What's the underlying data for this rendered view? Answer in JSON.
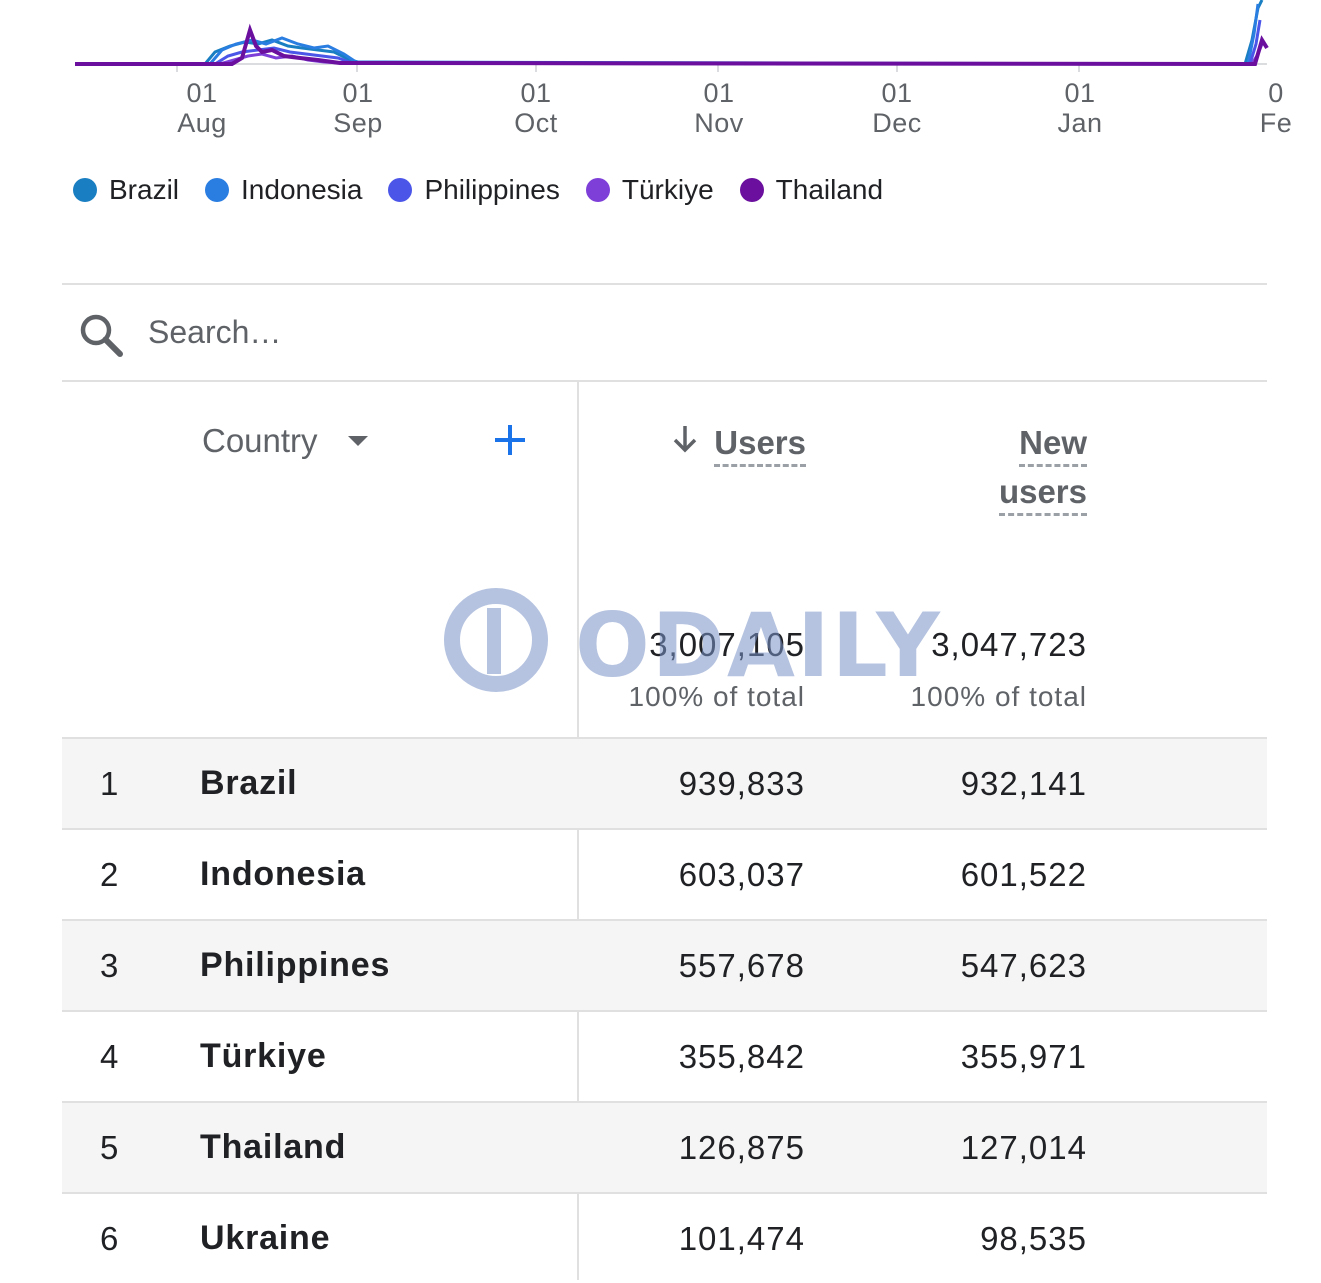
{
  "chart_data": {
    "type": "line",
    "x_ticks": [
      {
        "day": "01",
        "month": "Aug"
      },
      {
        "day": "01",
        "month": "Sep"
      },
      {
        "day": "01",
        "month": "Oct"
      },
      {
        "day": "01",
        "month": "Nov"
      },
      {
        "day": "01",
        "month": "Dec"
      },
      {
        "day": "01",
        "month": "Jan"
      },
      {
        "day": "0",
        "month": "Fe"
      }
    ],
    "series": [
      {
        "name": "Brazil",
        "color": "#1a7fc2"
      },
      {
        "name": "Indonesia",
        "color": "#2a7de1"
      },
      {
        "name": "Philippines",
        "color": "#4b55e8"
      },
      {
        "name": "Türkiye",
        "color": "#7d3fd8"
      },
      {
        "name": "Thailand",
        "color": "#6a0f9e"
      }
    ]
  },
  "search": {
    "placeholder": "Search…"
  },
  "table": {
    "dimension_label": "Country",
    "columns": {
      "users": "Users",
      "new_users_line1": "New",
      "new_users_line2": "users"
    },
    "totals": {
      "users": "3,007,105",
      "users_sub": "100% of total",
      "new_users": "3,047,723",
      "new_users_sub": "100% of total"
    },
    "rows": [
      {
        "rank": "1",
        "country": "Brazil",
        "users": "939,833",
        "new_users": "932,141"
      },
      {
        "rank": "2",
        "country": "Indonesia",
        "users": "603,037",
        "new_users": "601,522"
      },
      {
        "rank": "3",
        "country": "Philippines",
        "users": "557,678",
        "new_users": "547,623"
      },
      {
        "rank": "4",
        "country": "Türkiye",
        "users": "355,842",
        "new_users": "355,971"
      },
      {
        "rank": "5",
        "country": "Thailand",
        "users": "126,875",
        "new_users": "127,014"
      },
      {
        "rank": "6",
        "country": "Ukraine",
        "users": "101,474",
        "new_users": "98,535"
      }
    ]
  },
  "watermark": {
    "text": "ODAILY"
  },
  "colors": {
    "accent": "#1a73e8",
    "divider": "#e0e0e0",
    "row_shade": "#f5f5f5"
  }
}
